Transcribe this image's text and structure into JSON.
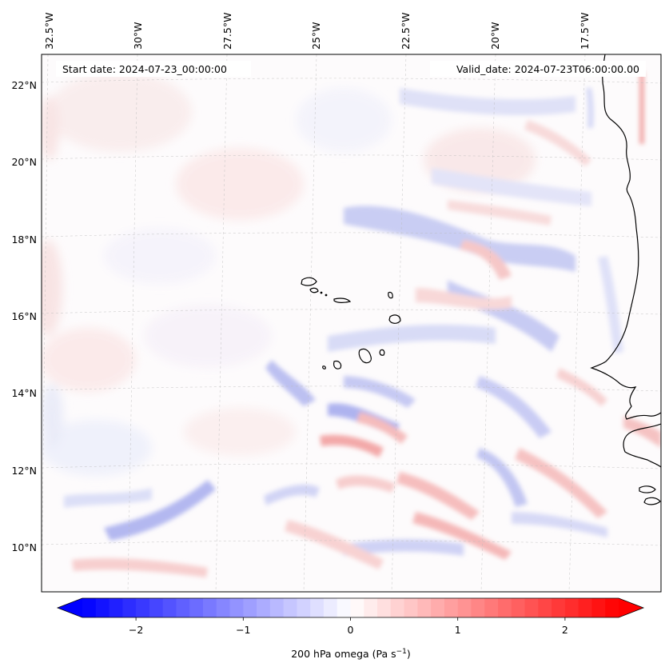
{
  "map": {
    "start_label": "Start date: 2024-07-23_00:00:00",
    "valid_label": "Valid_date: 2024-07-23T06:00:00.00",
    "lon_labels": [
      "32.5°W",
      "30°W",
      "27.5°W",
      "25°W",
      "22.5°W",
      "20°W",
      "17.5°W"
    ],
    "lat_labels": [
      "22°N",
      "20°N",
      "18°N",
      "16°N",
      "14°N",
      "12°N",
      "10°N"
    ],
    "gridlines": true,
    "coastline_color": "#000000"
  },
  "colorbar": {
    "label_prefix": "200 hPa omega (Pa s",
    "label_sup": "−1",
    "label_suffix": ")",
    "ticks": [
      "−2",
      "−1",
      "0",
      "1",
      "2"
    ],
    "tick_values": [
      -2,
      -1,
      0,
      1,
      2
    ],
    "range": [
      -2.5,
      2.5
    ],
    "colormap": "bwr",
    "extend": "both",
    "min_color": "#0000ff",
    "mid_color": "#ffffff",
    "max_color": "#ff0000"
  },
  "chart_data": {
    "type": "heatmap",
    "xlabel": "",
    "ylabel": "",
    "colorbar_label": "200 hPa omega (Pa s−1)",
    "vmin": -2.5,
    "vmax": 2.5,
    "colormap": "bwr",
    "lon_ticks": [
      -32.5,
      -30,
      -27.5,
      -25,
      -22.5,
      -20,
      -17.5
    ],
    "lat_ticks": [
      22,
      20,
      18,
      16,
      14,
      12,
      10
    ]
  }
}
